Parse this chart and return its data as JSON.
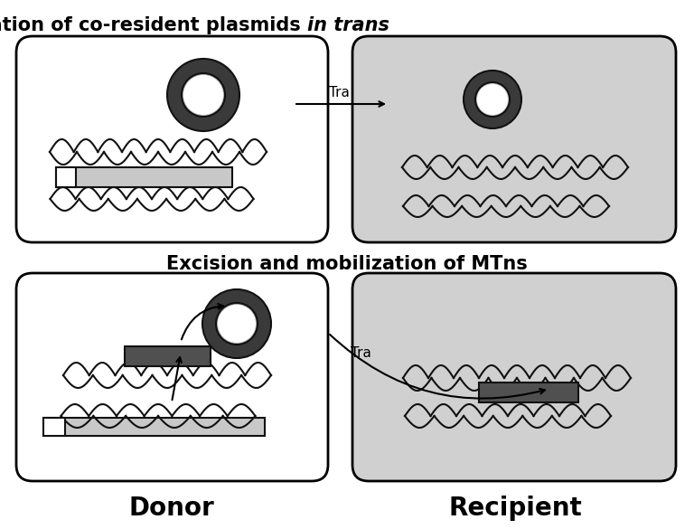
{
  "title1": "Mobilization of co-resident plasmids ",
  "title1_italic": "in trans",
  "title2": "Excision and mobilization of MTns",
  "label_donor": "Donor",
  "label_recipient": "Recipient",
  "label_tra": "Tra",
  "bg_color": "#ffffff",
  "box_bg_left": "#ffffff",
  "box_bg_right": "#d0d0d0",
  "box_edge_color": "#000000",
  "plasmid_outer_color": "#404040",
  "rect_light_color": "#c8c8c8",
  "rect_dark_color": "#505050",
  "rect_white_color": "#ffffff"
}
